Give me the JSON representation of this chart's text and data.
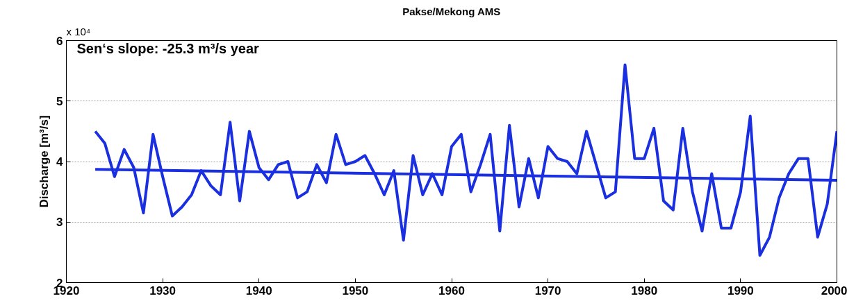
{
  "chart_data": {
    "type": "line",
    "title": "Pakse/Mekong AMS",
    "ylabel": "Discharge [m³/s]",
    "annotations": [
      "Sen‘s slope: -25.3 m³/s year",
      "x 10⁴"
    ],
    "x": [
      1923,
      1924,
      1925,
      1926,
      1927,
      1928,
      1929,
      1930,
      1931,
      1932,
      1933,
      1934,
      1935,
      1936,
      1937,
      1938,
      1939,
      1940,
      1941,
      1942,
      1943,
      1944,
      1945,
      1946,
      1947,
      1948,
      1949,
      1950,
      1951,
      1952,
      1953,
      1954,
      1955,
      1956,
      1957,
      1958,
      1959,
      1960,
      1961,
      1962,
      1963,
      1964,
      1965,
      1966,
      1967,
      1968,
      1969,
      1970,
      1971,
      1972,
      1973,
      1974,
      1975,
      1976,
      1977,
      1978,
      1979,
      1980,
      1981,
      1982,
      1983,
      1984,
      1985,
      1986,
      1987,
      1988,
      1989,
      1990,
      1991,
      1992,
      1993,
      1994,
      1995,
      1996,
      1997,
      1998,
      1999,
      2000
    ],
    "series": [
      {
        "color": "#1a2fe0",
        "values": [
          4.5,
          4.3,
          3.75,
          4.2,
          3.9,
          3.15,
          4.45,
          3.75,
          3.1,
          3.25,
          3.45,
          3.85,
          3.6,
          3.45,
          4.65,
          3.35,
          4.5,
          3.9,
          3.7,
          3.95,
          4.0,
          3.4,
          3.5,
          3.95,
          3.65,
          4.45,
          3.95,
          4.0,
          4.1,
          3.8,
          3.45,
          3.85,
          2.7,
          4.1,
          3.45,
          3.8,
          3.45,
          4.25,
          4.45,
          3.5,
          3.95,
          4.45,
          2.85,
          4.6,
          3.25,
          4.05,
          3.4,
          4.25,
          4.05,
          4.0,
          3.8,
          4.5,
          3.95,
          3.4,
          3.5,
          5.6,
          4.05,
          4.05,
          4.55,
          3.35,
          3.2,
          4.55,
          3.5,
          2.85,
          3.8,
          2.9,
          2.9,
          3.5,
          4.75,
          2.45,
          2.75,
          3.4,
          3.8,
          4.05,
          4.05,
          2.75,
          3.3,
          4.5
        ]
      },
      {
        "type": "line",
        "color": "#1a2fe0",
        "x": [
          1923,
          2000
        ],
        "values": [
          3.87,
          3.69
        ]
      }
    ],
    "xlim": [
      1920,
      2000
    ],
    "xticks": [
      1920,
      1930,
      1940,
      1950,
      1960,
      1970,
      1980,
      1990,
      2000
    ],
    "ylim": [
      2,
      6
    ],
    "yticks": [
      2,
      3,
      4,
      5,
      6
    ],
    "grid": "y",
    "line_style": "solid",
    "marker": "none"
  }
}
